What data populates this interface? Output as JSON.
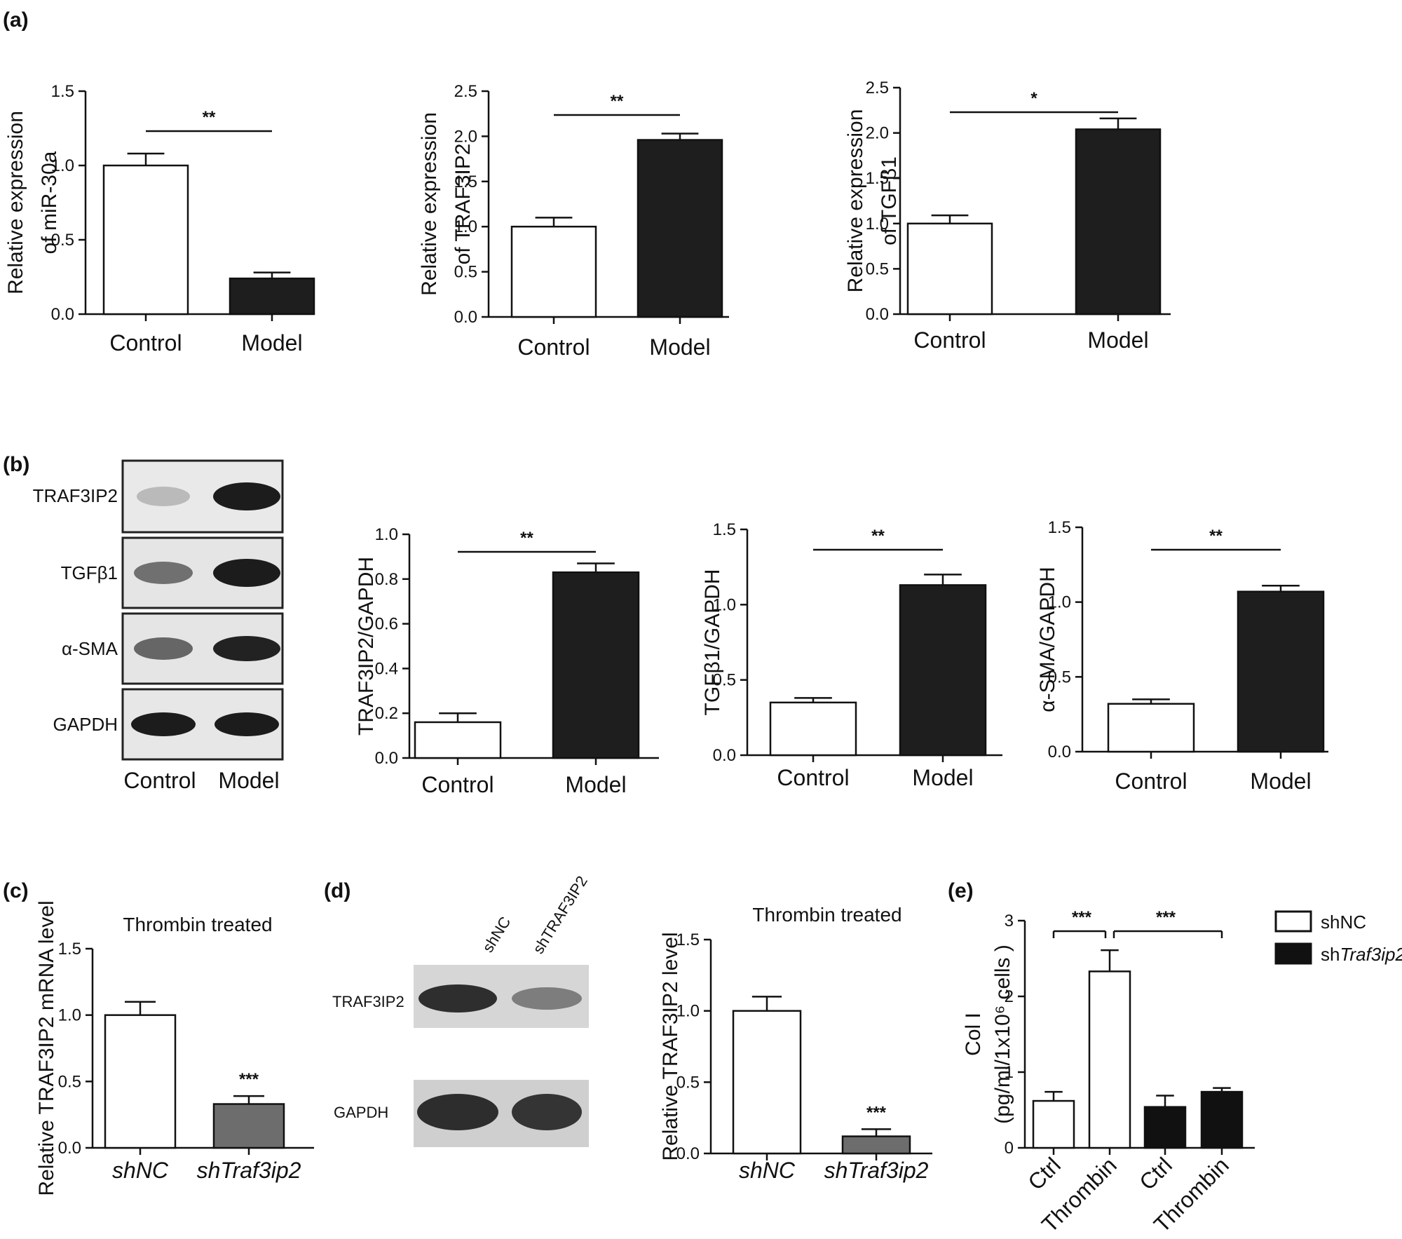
{
  "panel_labels": [
    "(a)",
    "(b)",
    "(c)",
    "(d)",
    "(e)"
  ],
  "colors": {
    "open": "#ffffff",
    "filled": "#1e1e1e",
    "grey": "#6d6d6d",
    "line": "#111111"
  },
  "western_blot_b": {
    "rows": [
      "TRAF3IP2",
      "TGFβ1",
      "α-SMA",
      "GAPDH"
    ],
    "lanes": [
      "Control",
      "Model"
    ],
    "intensity": [
      [
        0.22,
        0.95
      ],
      [
        0.55,
        0.95
      ],
      [
        0.6,
        0.92
      ],
      [
        0.95,
        0.95
      ]
    ]
  },
  "western_blot_d": {
    "rows": [
      "TRAF3IP2",
      "GAPDH"
    ],
    "lanes": [
      "shNC",
      "shTRAF3IP2"
    ],
    "intensity": [
      [
        0.85,
        0.45
      ],
      [
        0.85,
        0.82
      ]
    ]
  },
  "legend_e": [
    {
      "label": "shNC",
      "fill": "#ffffff"
    },
    {
      "label_prefix": "sh",
      "label_italic": "Traf3ip2",
      "fill": "#111111"
    }
  ],
  "chart_data": [
    {
      "id": "a1",
      "type": "bar",
      "title": "",
      "ylabel_lines": [
        "Relative expression",
        "of miR-30a"
      ],
      "categories": [
        "Control",
        "Model"
      ],
      "values": [
        1.0,
        0.24
      ],
      "errors": [
        0.08,
        0.04
      ],
      "fills": [
        "#ffffff",
        "#1e1e1e"
      ],
      "ylim": [
        0,
        1.5
      ],
      "yticks": [
        "0.0",
        "0.5",
        "1.0",
        "1.5"
      ],
      "significance": [
        {
          "from": 0,
          "to": 1,
          "label": "**"
        }
      ]
    },
    {
      "id": "a2",
      "type": "bar",
      "title": "",
      "ylabel_lines": [
        "Relative expression",
        "of TRAF3IP2"
      ],
      "categories": [
        "Control",
        "Model"
      ],
      "values": [
        1.0,
        1.96
      ],
      "errors": [
        0.1,
        0.07
      ],
      "fills": [
        "#ffffff",
        "#1e1e1e"
      ],
      "ylim": [
        0,
        2.5
      ],
      "yticks": [
        "0.0",
        "0.5",
        "1.0",
        "1.5",
        "2.0",
        "2.5"
      ],
      "significance": [
        {
          "from": 0,
          "to": 1,
          "label": "**"
        }
      ]
    },
    {
      "id": "a3",
      "type": "bar",
      "title": "",
      "ylabel_lines": [
        "Relative expression",
        "of TGFβ1"
      ],
      "categories": [
        "Control",
        "Model"
      ],
      "values": [
        1.0,
        2.04
      ],
      "errors": [
        0.09,
        0.12
      ],
      "fills": [
        "#ffffff",
        "#1e1e1e"
      ],
      "ylim": [
        0,
        2.5
      ],
      "yticks": [
        "0.0",
        "0.5",
        "1.0",
        "1.5",
        "2.0",
        "2.5"
      ],
      "significance": [
        {
          "from": 0,
          "to": 1,
          "label": "*"
        }
      ]
    },
    {
      "id": "b1",
      "type": "bar",
      "title": "",
      "ylabel_lines": [
        "TRAF3IP2/GAPDH"
      ],
      "categories": [
        "Control",
        "Model"
      ],
      "values": [
        0.16,
        0.83
      ],
      "errors": [
        0.04,
        0.04
      ],
      "fills": [
        "#ffffff",
        "#1e1e1e"
      ],
      "ylim": [
        0,
        1.0
      ],
      "yticks": [
        "0.0",
        "0.2",
        "0.4",
        "0.6",
        "0.8",
        "1.0"
      ],
      "significance": [
        {
          "from": 0,
          "to": 1,
          "label": "**"
        }
      ]
    },
    {
      "id": "b2",
      "type": "bar",
      "title": "",
      "ylabel_lines": [
        "TGFβ1/GAPDH"
      ],
      "categories": [
        "Control",
        "Model"
      ],
      "values": [
        0.35,
        1.13
      ],
      "errors": [
        0.03,
        0.07
      ],
      "fills": [
        "#ffffff",
        "#1e1e1e"
      ],
      "ylim": [
        0,
        1.5
      ],
      "yticks": [
        "0.0",
        "0.5",
        "1.0",
        "1.5"
      ],
      "significance": [
        {
          "from": 0,
          "to": 1,
          "label": "**"
        }
      ]
    },
    {
      "id": "b3",
      "type": "bar",
      "title": "",
      "ylabel_lines": [
        "α-SMA/GAPDH"
      ],
      "categories": [
        "Control",
        "Model"
      ],
      "values": [
        0.32,
        1.07
      ],
      "errors": [
        0.03,
        0.04
      ],
      "fills": [
        "#ffffff",
        "#1e1e1e"
      ],
      "ylim": [
        0,
        1.5
      ],
      "yticks": [
        "0.0",
        "0.5",
        "1.0",
        "1.5"
      ],
      "significance": [
        {
          "from": 0,
          "to": 1,
          "label": "**"
        }
      ]
    },
    {
      "id": "c",
      "type": "bar",
      "title": "Thrombin treated",
      "ylabel_lines": [
        "Relative TRAF3IP2 mRNA level"
      ],
      "categories": [
        "shNC",
        "shTraf3ip2"
      ],
      "categories_italic": true,
      "values": [
        1.0,
        0.33
      ],
      "errors": [
        0.1,
        0.06
      ],
      "fills": [
        "#ffffff",
        "#6d6d6d"
      ],
      "ylim": [
        0,
        1.5
      ],
      "yticks": [
        "0.0",
        "0.5",
        "1.0",
        "1.5"
      ],
      "bar_labels": [
        "",
        "***"
      ]
    },
    {
      "id": "d",
      "type": "bar",
      "title": "Thrombin treated",
      "ylabel_lines": [
        "Relative TRAF3IP2  level"
      ],
      "categories": [
        "shNC",
        "shTraf3ip2"
      ],
      "categories_italic": true,
      "values": [
        1.0,
        0.12
      ],
      "errors": [
        0.1,
        0.05
      ],
      "fills": [
        "#ffffff",
        "#6d6d6d"
      ],
      "ylim": [
        0,
        1.5
      ],
      "yticks": [
        "0.0",
        "0.5",
        "1.0",
        "1.5"
      ],
      "bar_labels": [
        "",
        "***"
      ]
    },
    {
      "id": "e",
      "type": "bar",
      "title": "",
      "ylabel_lines": [
        "Col I",
        "(pg/ml/1x10⁶ cells )"
      ],
      "categories": [
        "Ctrl",
        "Thrombin",
        "Ctrl",
        "Thrombin"
      ],
      "categories_rotated": true,
      "values": [
        0.62,
        2.33,
        0.54,
        0.74
      ],
      "errors": [
        0.12,
        0.28,
        0.15,
        0.05
      ],
      "fills": [
        "#ffffff",
        "#ffffff",
        "#111111",
        "#111111"
      ],
      "ylim": [
        0,
        3
      ],
      "yticks": [
        "0",
        "1",
        "2",
        "3"
      ],
      "significance": [
        {
          "from": 0,
          "to": 1,
          "label": "***"
        },
        {
          "from": 1,
          "to": 3,
          "label": "***"
        }
      ],
      "legend_position": "right"
    }
  ]
}
